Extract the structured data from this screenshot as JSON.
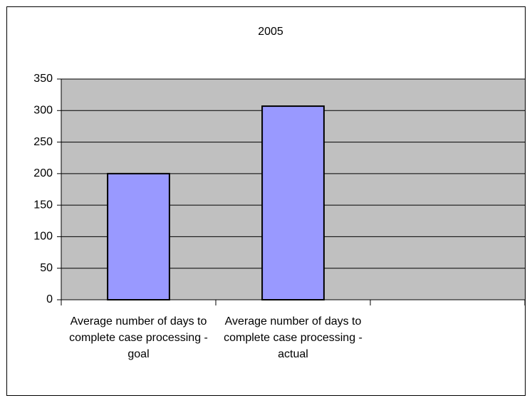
{
  "chart_data": {
    "type": "bar",
    "title": "2005",
    "categories": [
      "Average number of days to complete case processing - goal",
      "Average number of days to complete case processing - actual",
      null
    ],
    "values": [
      200,
      307,
      null
    ],
    "color": "#9999ff",
    "ylim": [
      0,
      350
    ],
    "yticks": [
      0,
      50,
      100,
      150,
      200,
      250,
      300,
      350
    ],
    "grid": true
  }
}
